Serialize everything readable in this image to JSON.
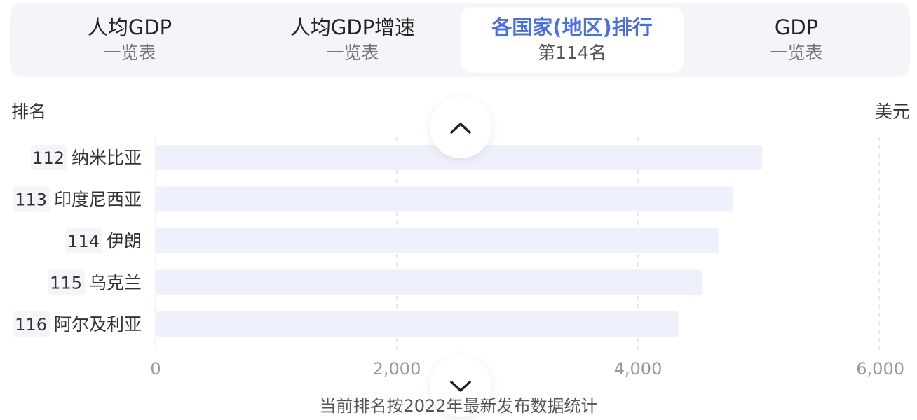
{
  "tabs": [
    {
      "title": "人均GDP",
      "subtitle": "一览表",
      "active": false
    },
    {
      "title": "人均GDP增速",
      "subtitle": "一览表",
      "active": false
    },
    {
      "title": "各国家(地区)排行",
      "subtitle": "第114名",
      "active": true
    },
    {
      "title": "GDP",
      "subtitle": "一览表",
      "active": false
    }
  ],
  "axis": {
    "left_title": "排名",
    "right_title": "美元"
  },
  "icons": {
    "up": "chevron-up-icon",
    "down": "chevron-down-icon"
  },
  "footer": "当前排名按2022年最新发布数据统计",
  "colors": {
    "accent": "#4a6fe3",
    "bar": "#eef0fb",
    "rank_bg": "#f4f5f9"
  },
  "chart_data": {
    "type": "bar",
    "orientation": "horizontal",
    "categories": [
      "纳米比亚",
      "印度尼西亚",
      "伊朗",
      "乌克兰",
      "阿尔及利亚"
    ],
    "ranks": [
      "112",
      "113",
      "114",
      "115",
      "116"
    ],
    "values": [
      5030,
      4790,
      4670,
      4530,
      4340
    ],
    "xlim": [
      0,
      6000
    ],
    "xticks": [
      0,
      2000,
      4000,
      6000
    ],
    "xtick_labels": [
      "0",
      "2,000",
      "4,000",
      "6,000"
    ],
    "grid": true,
    "ylabel": "排名",
    "xlabel": "美元"
  }
}
